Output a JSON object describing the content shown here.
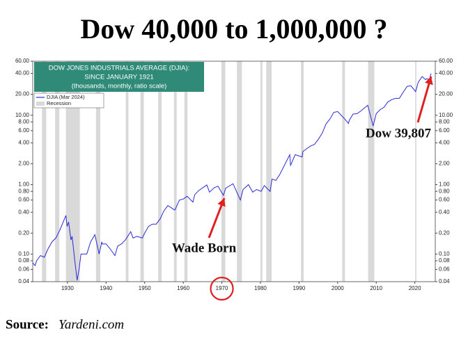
{
  "title": "Dow 40,000 to 1,000,000 ?",
  "source": {
    "label": "Source:",
    "site": "Yardeni.com"
  },
  "chart_data": {
    "type": "line",
    "box_lines": [
      "DOW JONES INDUSTRIALS AVERAGE (DJIA):",
      "SINCE JANUARY 1921",
      "(thousands, monthly, ratio scale)"
    ],
    "log_scale": true,
    "xlim": [
      1921,
      2025.3
    ],
    "xticks": [
      1930,
      1940,
      1950,
      1960,
      1970,
      1980,
      1990,
      2000,
      2010,
      2020
    ],
    "ylim": [
      0.04,
      60
    ],
    "yticks": [
      {
        "value": 0.04,
        "label": "0.04"
      },
      {
        "value": 0.06,
        "label": "0.06"
      },
      {
        "value": 0.08,
        "label": "0.08"
      },
      {
        "value": 0.1,
        "label": "0.10"
      },
      {
        "value": 0.2,
        "label": "0.20"
      },
      {
        "value": 0.4,
        "label": "0.40"
      },
      {
        "value": 0.6,
        "label": "0.60"
      },
      {
        "value": 0.8,
        "label": "0.80"
      },
      {
        "value": 1,
        "label": "1.00"
      },
      {
        "value": 2,
        "label": "2.00"
      },
      {
        "value": 4,
        "label": "4.00"
      },
      {
        "value": 6,
        "label": "6.00"
      },
      {
        "value": 8,
        "label": "8.00"
      },
      {
        "value": 10,
        "label": "10.00"
      },
      {
        "value": 20,
        "label": "20.00"
      },
      {
        "value": 40,
        "label": "40.00"
      },
      {
        "value": 60,
        "label": "60.00"
      }
    ],
    "recession_label": "Recession",
    "recession_color": "#d9d9d9",
    "recessions": [
      [
        1923.4,
        1924.5
      ],
      [
        1926.8,
        1927.9
      ],
      [
        1929.6,
        1933.2
      ],
      [
        1937.4,
        1938.5
      ],
      [
        1945.1,
        1945.8
      ],
      [
        1948.9,
        1949.8
      ],
      [
        1953.5,
        1954.4
      ],
      [
        1957.6,
        1958.3
      ],
      [
        1960.3,
        1961.1
      ],
      [
        1969.9,
        1970.9
      ],
      [
        1973.9,
        1975.2
      ],
      [
        1980.0,
        1980.5
      ],
      [
        1981.5,
        1982.9
      ],
      [
        1990.5,
        1991.2
      ],
      [
        2001.2,
        2001.9
      ],
      [
        2007.9,
        2009.5
      ],
      [
        2020.1,
        2020.4
      ]
    ],
    "x": [
      1921.0,
      1921.6,
      1922,
      1923,
      1924,
      1925,
      1926,
      1927,
      1928,
      1929.6,
      1929.9,
      1930.3,
      1930.9,
      1931.2,
      1931.9,
      1932.5,
      1933,
      1933.5,
      1934,
      1935,
      1936,
      1937.1,
      1938.2,
      1938.9,
      1939,
      1940,
      1941,
      1942.3,
      1943,
      1944,
      1945,
      1946.4,
      1947,
      1948,
      1949.4,
      1950,
      1951,
      1952,
      1953,
      1954,
      1955,
      1956,
      1957.8,
      1958,
      1959,
      1960,
      1961,
      1962.5,
      1963,
      1964,
      1966.1,
      1966.8,
      1968,
      1969,
      1970.4,
      1971,
      1972.9,
      1974.8,
      1975.5,
      1976.9,
      1978,
      1979,
      1980.2,
      1981,
      1982.5,
      1983,
      1984,
      1985,
      1986,
      1987.6,
      1987.8,
      1988,
      1989,
      1990.8,
      1991,
      1992,
      1993,
      1994,
      1995,
      1996,
      1997,
      1998,
      1999,
      2000,
      2001.7,
      2002.8,
      2003,
      2004,
      2005,
      2006,
      2007.8,
      2009.2,
      2010,
      2011,
      2012,
      2013,
      2014,
      2015,
      2016,
      2017,
      2018,
      2019,
      2020.2,
      2020.9,
      2021.9,
      2022.8,
      2023,
      2023.8,
      2024.2
    ],
    "series": [
      {
        "name": "DJIA (Mar 2024)",
        "color": "#2a2ad8",
        "values": [
          0.075,
          0.068,
          0.08,
          0.095,
          0.09,
          0.12,
          0.15,
          0.17,
          0.22,
          0.36,
          0.25,
          0.29,
          0.16,
          0.18,
          0.08,
          0.042,
          0.06,
          0.1,
          0.1,
          0.1,
          0.15,
          0.19,
          0.1,
          0.15,
          0.14,
          0.14,
          0.12,
          0.095,
          0.13,
          0.14,
          0.16,
          0.21,
          0.17,
          0.18,
          0.17,
          0.2,
          0.25,
          0.27,
          0.27,
          0.32,
          0.42,
          0.5,
          0.43,
          0.45,
          0.6,
          0.62,
          0.68,
          0.56,
          0.72,
          0.82,
          0.99,
          0.78,
          0.9,
          0.95,
          0.7,
          0.89,
          1.03,
          0.6,
          0.85,
          1.0,
          0.78,
          0.85,
          0.8,
          0.97,
          0.8,
          1.2,
          1.15,
          1.4,
          1.8,
          2.7,
          1.9,
          2.0,
          2.7,
          2.5,
          3.0,
          3.3,
          3.6,
          3.8,
          4.5,
          5.5,
          7.5,
          8.8,
          11.0,
          11.3,
          9.0,
          7.6,
          8.4,
          10.4,
          10.5,
          11.5,
          13.9,
          7.0,
          10.5,
          12.0,
          13.0,
          15.5,
          16.8,
          17.5,
          17.5,
          21.5,
          26.0,
          26.5,
          21.9,
          30.0,
          36.0,
          32.5,
          33.5,
          33.0,
          39.807
        ]
      }
    ],
    "annotations": [
      {
        "text": "Wade Born",
        "color": "#e02020"
      },
      {
        "text": "Dow 39,807",
        "color": "#e02020"
      }
    ]
  }
}
